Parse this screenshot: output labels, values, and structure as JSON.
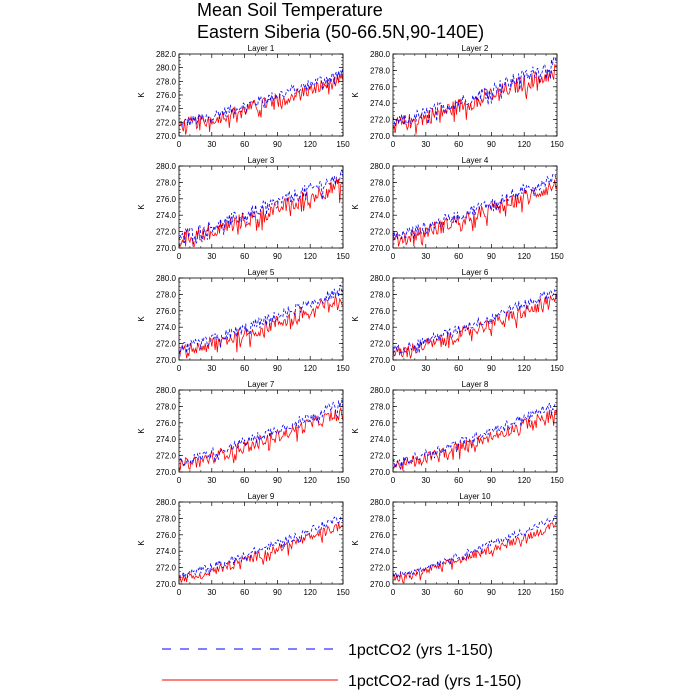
{
  "chart_data": {
    "type": "line",
    "title": [
      "Mean Soil Temperature",
      "Eastern Siberia (50-66.5N,90-140E)"
    ],
    "ylabel": "K",
    "xlim": [
      0,
      150
    ],
    "xticks": [
      0,
      30,
      60,
      90,
      120,
      150
    ],
    "colors": {
      "series_a": "#0000ff",
      "series_b": "#ff0000"
    },
    "legend": [
      {
        "name": "1pctCO2 (yrs 1-150)",
        "color": "#0000ff",
        "style": "dashed"
      },
      {
        "name": "1pctCO2-rad (yrs 1-150)",
        "color": "#ff0000",
        "style": "solid"
      }
    ],
    "panels": [
      {
        "title": "Layer 1",
        "ylim": [
          270,
          282
        ],
        "yticks": [
          "270.0",
          "272.0",
          "274.0",
          "276.0",
          "278.0",
          "280.0",
          "282.0"
        ],
        "a": {
          "start": 271.8,
          "end": 279.3,
          "amp": 0.8
        },
        "b": {
          "start": 271.5,
          "end": 278.3,
          "amp": 1.0
        }
      },
      {
        "title": "Layer 2",
        "ylim": [
          270,
          280
        ],
        "yticks": [
          "270.0",
          "272.0",
          "274.0",
          "276.0",
          "278.0",
          "280.0"
        ],
        "a": {
          "start": 271.6,
          "end": 279.0,
          "amp": 0.8
        },
        "b": {
          "start": 271.3,
          "end": 278.0,
          "amp": 1.0
        }
      },
      {
        "title": "Layer 3",
        "ylim": [
          270,
          280
        ],
        "yticks": [
          "270.0",
          "272.0",
          "274.0",
          "276.0",
          "278.0",
          "280.0"
        ],
        "a": {
          "start": 271.5,
          "end": 278.8,
          "amp": 0.8
        },
        "b": {
          "start": 271.1,
          "end": 277.8,
          "amp": 1.0
        }
      },
      {
        "title": "Layer 4",
        "ylim": [
          270,
          280
        ],
        "yticks": [
          "270.0",
          "272.0",
          "274.0",
          "276.0",
          "278.0",
          "280.0"
        ],
        "a": {
          "start": 271.4,
          "end": 278.8,
          "amp": 0.7
        },
        "b": {
          "start": 271.0,
          "end": 277.7,
          "amp": 0.9
        }
      },
      {
        "title": "Layer 5",
        "ylim": [
          270,
          280
        ],
        "yticks": [
          "270.0",
          "272.0",
          "274.0",
          "276.0",
          "278.0",
          "280.0"
        ],
        "a": {
          "start": 271.3,
          "end": 278.6,
          "amp": 0.7
        },
        "b": {
          "start": 270.9,
          "end": 277.5,
          "amp": 0.9
        }
      },
      {
        "title": "Layer 6",
        "ylim": [
          270,
          280
        ],
        "yticks": [
          "270.0",
          "272.0",
          "274.0",
          "276.0",
          "278.0",
          "280.0"
        ],
        "a": {
          "start": 271.2,
          "end": 278.5,
          "amp": 0.6
        },
        "b": {
          "start": 270.8,
          "end": 277.4,
          "amp": 0.8
        }
      },
      {
        "title": "Layer 7",
        "ylim": [
          270,
          280
        ],
        "yticks": [
          "270.0",
          "272.0",
          "274.0",
          "276.0",
          "278.0",
          "280.0"
        ],
        "a": {
          "start": 271.2,
          "end": 278.4,
          "amp": 0.6
        },
        "b": {
          "start": 270.8,
          "end": 277.3,
          "amp": 0.8
        }
      },
      {
        "title": "Layer 8",
        "ylim": [
          270,
          280
        ],
        "yticks": [
          "270.0",
          "272.0",
          "274.0",
          "276.0",
          "278.0",
          "280.0"
        ],
        "a": {
          "start": 271.1,
          "end": 278.3,
          "amp": 0.5
        },
        "b": {
          "start": 270.7,
          "end": 277.3,
          "amp": 0.7
        }
      },
      {
        "title": "Layer 9",
        "ylim": [
          270,
          280
        ],
        "yticks": [
          "270.0",
          "272.0",
          "274.0",
          "276.0",
          "278.0",
          "280.0"
        ],
        "a": {
          "start": 271.0,
          "end": 278.2,
          "amp": 0.5
        },
        "b": {
          "start": 270.6,
          "end": 277.2,
          "amp": 0.6
        }
      },
      {
        "title": "Layer 10",
        "ylim": [
          270,
          280
        ],
        "yticks": [
          "270.0",
          "272.0",
          "274.0",
          "276.0",
          "278.0",
          "280.0"
        ],
        "a": {
          "start": 271.0,
          "end": 278.1,
          "amp": 0.4
        },
        "b": {
          "start": 270.6,
          "end": 277.2,
          "amp": 0.5
        }
      }
    ]
  }
}
